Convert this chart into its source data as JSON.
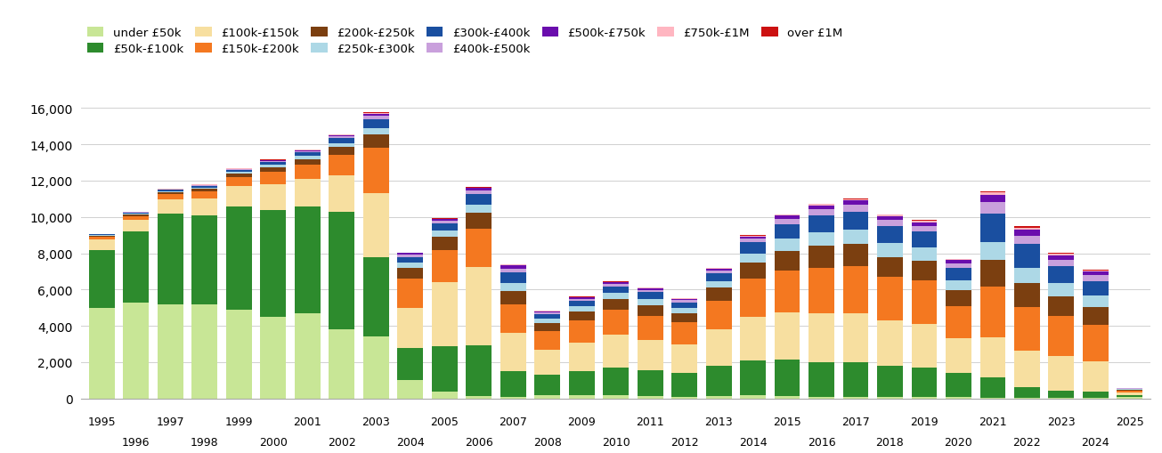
{
  "years": [
    1995,
    1996,
    1997,
    1998,
    1999,
    2000,
    2001,
    2002,
    2003,
    2004,
    2005,
    2006,
    2007,
    2008,
    2009,
    2010,
    2011,
    2012,
    2013,
    2014,
    2015,
    2016,
    2017,
    2018,
    2019,
    2020,
    2021,
    2022,
    2023,
    2024,
    2025
  ],
  "categories": [
    "under £50k",
    "£50k-£100k",
    "£100k-£150k",
    "£150k-£200k",
    "£200k-£250k",
    "£250k-£300k",
    "£300k-£400k",
    "£400k-£500k",
    "£500k-£750k",
    "£750k-£1M",
    "over £1M"
  ],
  "colors": [
    "#c8e696",
    "#2d8b2d",
    "#f7dfa0",
    "#f47820",
    "#7b3f10",
    "#add8e6",
    "#1a4fa0",
    "#c9a0dc",
    "#6a0dad",
    "#ffb6c1",
    "#cc1111"
  ],
  "data": {
    "under £50k": [
      5000,
      5300,
      5200,
      5200,
      4900,
      4500,
      4700,
      3800,
      3400,
      1000,
      400,
      150,
      100,
      200,
      200,
      200,
      150,
      100,
      150,
      200,
      150,
      100,
      100,
      100,
      100,
      100,
      50,
      50,
      30,
      20,
      80
    ],
    "£50k-£100k": [
      3200,
      3900,
      5000,
      4900,
      5700,
      5900,
      5900,
      6500,
      4400,
      1800,
      2500,
      2800,
      1400,
      1100,
      1300,
      1500,
      1400,
      1300,
      1650,
      1900,
      2000,
      1900,
      1900,
      1700,
      1600,
      1300,
      1100,
      600,
      400,
      350,
      100
    ],
    "£100k-£150k": [
      550,
      650,
      750,
      900,
      1100,
      1400,
      1500,
      2000,
      3500,
      2200,
      3500,
      4300,
      2100,
      1400,
      1600,
      1800,
      1700,
      1600,
      2000,
      2400,
      2600,
      2700,
      2700,
      2500,
      2400,
      1900,
      2200,
      2000,
      1900,
      1700,
      150
    ],
    "£150k-£200k": [
      150,
      200,
      300,
      400,
      500,
      700,
      800,
      1100,
      2500,
      1600,
      1800,
      2100,
      1600,
      1000,
      1200,
      1400,
      1300,
      1200,
      1600,
      2100,
      2300,
      2500,
      2600,
      2400,
      2400,
      1800,
      2800,
      2400,
      2200,
      2000,
      100
    ],
    "£200k-£250k": [
      80,
      100,
      120,
      150,
      180,
      250,
      300,
      450,
      750,
      600,
      700,
      900,
      700,
      450,
      500,
      600,
      600,
      500,
      700,
      900,
      1100,
      1200,
      1200,
      1100,
      1100,
      850,
      1500,
      1300,
      1100,
      950,
      50
    ],
    "£250k-£300k": [
      30,
      50,
      60,
      80,
      100,
      130,
      170,
      230,
      350,
      300,
      350,
      450,
      450,
      250,
      280,
      320,
      320,
      280,
      380,
      500,
      650,
      750,
      800,
      750,
      700,
      550,
      950,
      850,
      750,
      650,
      30
    ],
    "£300k-£400k": [
      30,
      50,
      60,
      80,
      100,
      150,
      180,
      250,
      500,
      300,
      380,
      580,
      600,
      250,
      300,
      360,
      380,
      320,
      420,
      600,
      800,
      950,
      1000,
      950,
      900,
      700,
      1600,
      1300,
      900,
      800,
      30
    ],
    "£400k-£500k": [
      15,
      20,
      25,
      35,
      45,
      60,
      80,
      110,
      180,
      120,
      150,
      190,
      220,
      90,
      110,
      130,
      140,
      120,
      150,
      200,
      280,
      330,
      360,
      330,
      310,
      250,
      600,
      480,
      360,
      310,
      15
    ],
    "£500k-£750k": [
      10,
      15,
      18,
      25,
      30,
      45,
      55,
      75,
      115,
      85,
      95,
      120,
      150,
      65,
      75,
      85,
      90,
      75,
      95,
      130,
      190,
      210,
      240,
      220,
      210,
      165,
      430,
      340,
      260,
      220,
      10
    ],
    "£750k-£1M": [
      5,
      8,
      10,
      12,
      14,
      16,
      18,
      22,
      38,
      28,
      32,
      38,
      48,
      22,
      25,
      28,
      28,
      24,
      30,
      40,
      55,
      62,
      68,
      65,
      62,
      48,
      120,
      100,
      80,
      68,
      5
    ],
    "over £1M": [
      3,
      5,
      6,
      7,
      9,
      11,
      12,
      16,
      22,
      16,
      18,
      22,
      26,
      13,
      15,
      17,
      16,
      14,
      18,
      22,
      32,
      37,
      42,
      40,
      37,
      30,
      75,
      58,
      48,
      40,
      3
    ]
  },
  "ylim": [
    0,
    16000
  ],
  "yticks": [
    0,
    2000,
    4000,
    6000,
    8000,
    10000,
    12000,
    14000,
    16000
  ],
  "background_color": "#ffffff"
}
